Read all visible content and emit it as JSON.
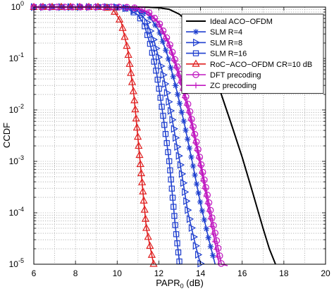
{
  "chart_data": {
    "type": "line",
    "title": "",
    "xlabel": "PAPR",
    "xlabel_sub": "0",
    "xlabel_unit": " (dB)",
    "ylabel": "CCDF",
    "xlim": [
      6,
      20
    ],
    "ylim": [
      1e-05,
      1
    ],
    "yscale": "log",
    "grid": true,
    "legend_position": "top-right",
    "x_ticks": [
      "6",
      "8",
      "10",
      "12",
      "14",
      "16",
      "18",
      "20"
    ],
    "y_ticks": [
      {
        "base": "10",
        "exp": "0"
      },
      {
        "base": "10",
        "exp": "-1"
      },
      {
        "base": "10",
        "exp": "-2"
      },
      {
        "base": "10",
        "exp": "-3"
      },
      {
        "base": "10",
        "exp": "-4"
      },
      {
        "base": "10",
        "exp": "-5"
      }
    ],
    "series": [
      {
        "name": "Ideal ACO−OFDM",
        "color": "#000000",
        "marker": "none",
        "x": [
          6,
          10.5,
          11.5,
          12.0,
          12.5,
          13.0,
          13.5,
          14.0,
          14.5,
          15.0,
          15.5,
          16.0,
          16.5,
          17.0,
          17.3,
          17.6
        ],
        "y": [
          1,
          1,
          0.99,
          0.97,
          0.9,
          0.72,
          0.45,
          0.2,
          0.07,
          0.02,
          0.005,
          0.0012,
          0.00025,
          5e-05,
          2e-05,
          1e-05
        ]
      },
      {
        "name": "SLM  R=4",
        "color": "#1f3fcf",
        "marker": "star",
        "x": [
          6,
          9.5,
          10.0,
          10.5,
          11.0,
          11.5,
          12.0,
          12.4,
          12.8,
          13.2,
          13.6,
          14.0,
          14.4,
          14.7
        ],
        "y": [
          1,
          1,
          0.99,
          0.97,
          0.9,
          0.7,
          0.35,
          0.12,
          0.03,
          0.006,
          0.001,
          0.00015,
          3e-05,
          1e-05
        ]
      },
      {
        "name": "SLM  R=8",
        "color": "#1f3fcf",
        "marker": "triangle-right",
        "x": [
          6,
          9.5,
          10.0,
          10.5,
          11.0,
          11.4,
          11.8,
          12.2,
          12.6,
          13.0,
          13.4,
          13.8,
          14.0
        ],
        "y": [
          1,
          1,
          0.99,
          0.95,
          0.82,
          0.55,
          0.2,
          0.05,
          0.008,
          0.001,
          0.0001,
          2e-05,
          1e-05
        ]
      },
      {
        "name": "SLM  R=16",
        "color": "#1f3fcf",
        "marker": "square",
        "x": [
          6,
          9.5,
          10.0,
          10.5,
          11.0,
          11.3,
          11.6,
          11.9,
          12.2,
          12.5,
          12.8,
          13.0
        ],
        "y": [
          1,
          1,
          0.98,
          0.92,
          0.7,
          0.45,
          0.18,
          0.05,
          0.008,
          0.001,
          5e-05,
          1e-05
        ]
      },
      {
        "name": "RoC−ACO−OFDM  CR=10 dB",
        "color": "#e02020",
        "marker": "triangle-up",
        "x": [
          6,
          9.0,
          9.4,
          9.8,
          10.2,
          10.5,
          10.8,
          11.1,
          11.4,
          11.6,
          11.75
        ],
        "y": [
          1,
          1,
          0.99,
          0.9,
          0.5,
          0.15,
          0.02,
          0.001,
          5e-05,
          2e-05,
          1e-05
        ]
      },
      {
        "name": "DFT precoding",
        "color": "#c018c0",
        "marker": "circle",
        "x": [
          6,
          10.0,
          10.5,
          11.0,
          11.5,
          12.0,
          12.5,
          13.0,
          13.5,
          14.0,
          14.5,
          15.0,
          15.3
        ],
        "y": [
          1,
          1,
          0.99,
          0.95,
          0.8,
          0.5,
          0.2,
          0.05,
          0.009,
          0.001,
          0.0001,
          1e-05,
          8e-06
        ]
      },
      {
        "name": "ZC precoding",
        "color": "#c018c0",
        "marker": "plus",
        "x": [
          6,
          10.0,
          10.5,
          11.0,
          11.5,
          12.0,
          12.5,
          13.0,
          13.5,
          14.0,
          14.5,
          14.9
        ],
        "y": [
          1,
          1,
          0.99,
          0.94,
          0.78,
          0.48,
          0.18,
          0.04,
          0.007,
          0.0008,
          7e-05,
          1e-05
        ]
      }
    ]
  }
}
